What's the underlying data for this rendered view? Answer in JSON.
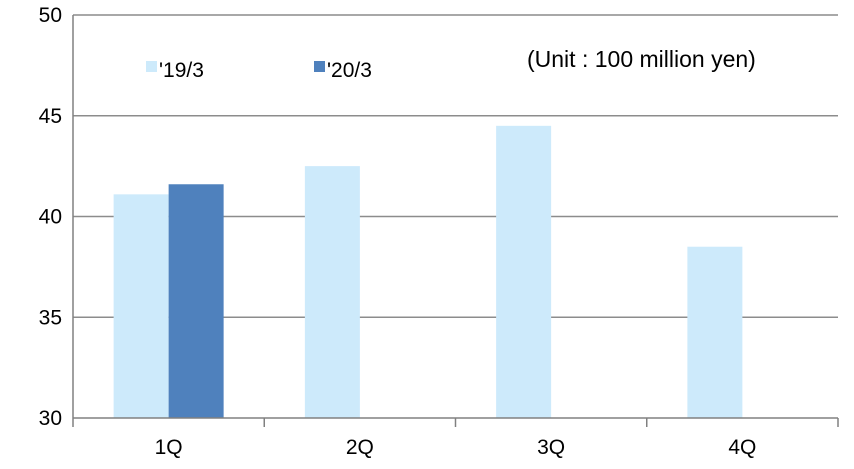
{
  "chart_data": {
    "type": "bar",
    "categories": [
      "1Q",
      "2Q",
      "3Q",
      "4Q"
    ],
    "series": [
      {
        "name": "'19/3",
        "values": [
          41.1,
          42.5,
          44.5,
          38.5
        ],
        "color": "#cdeafb"
      },
      {
        "name": "'20/3",
        "values": [
          41.6,
          null,
          null,
          null
        ],
        "color": "#4f81bd"
      }
    ],
    "yticks": [
      "30",
      "35",
      "40",
      "45",
      "50"
    ],
    "ylim": [
      30,
      50
    ],
    "unit_label": "(Unit : 100 million yen)",
    "grid": true,
    "legend_position": "top-left"
  }
}
